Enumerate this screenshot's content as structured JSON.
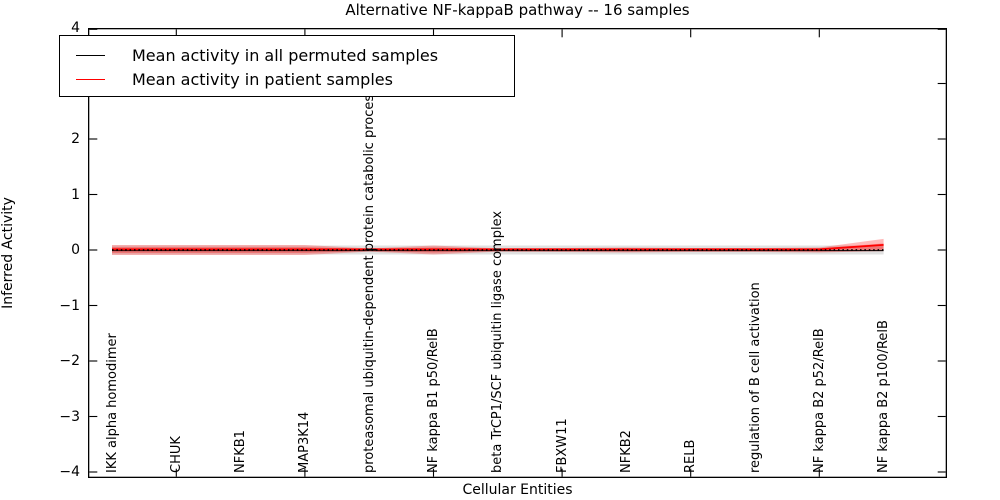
{
  "legend": {
    "items": [
      {
        "label": "Mean activity in all permuted samples",
        "color": "#000000"
      },
      {
        "label": "Mean activity in patient samples",
        "color": "#ff0000"
      }
    ]
  },
  "chart_data": {
    "type": "line",
    "title": "Alternative NF-kappaB pathway -- 16 samples",
    "xlabel": "Cellular Entities",
    "ylabel": "Inferred Activity",
    "ylim": [
      -4.1,
      4
    ],
    "yticks": [
      4,
      3,
      2,
      1,
      0,
      -1,
      -2,
      -3,
      -4
    ],
    "ytick_labels": [
      "4",
      "3",
      "2",
      "1",
      "0",
      "−1",
      "−2",
      "−3",
      "−4"
    ],
    "grid": false,
    "legend_position": "upper left",
    "x_tick_indices": [
      1,
      3,
      5,
      7,
      9,
      11
    ],
    "categories": [
      "IKK alpha homodimer",
      "CHUK",
      "NFKB1",
      "MAP3K14",
      "proteasomal ubiquitin-dependent protein catabolic process",
      "NF kappa B1 p50/RelB",
      "beta TrCP1/SCF ubiquitin ligase complex",
      "FBXW11",
      "NFKB2",
      "RELB",
      "regulation of B cell activation",
      "NF kappa B2 p52/RelB",
      "NF kappa B2 p100/RelB"
    ],
    "series": [
      {
        "name": "Mean activity in all permuted samples",
        "color": "#000000",
        "line_style": "solid-with-dot-overlay",
        "values": [
          0,
          0,
          0,
          0,
          0,
          0,
          0,
          0,
          0,
          0,
          0,
          0,
          0
        ],
        "band_upper": [
          0.08,
          0.08,
          0.08,
          0.08,
          0.08,
          0.08,
          0.08,
          0.08,
          0.08,
          0.08,
          0.08,
          0.08,
          0.08
        ],
        "band_lower": [
          -0.08,
          -0.08,
          -0.08,
          -0.08,
          -0.08,
          -0.08,
          -0.08,
          -0.08,
          -0.08,
          -0.08,
          -0.08,
          -0.08,
          -0.08
        ],
        "band_color": "#000000",
        "band_opacity": 0.12
      },
      {
        "name": "Mean activity in patient samples",
        "color": "#ff0000",
        "line_style": "solid",
        "values": [
          0,
          0,
          0,
          0,
          0,
          0,
          0,
          0,
          0,
          0,
          0,
          0,
          0.08
        ],
        "band_upper": [
          0.09,
          0.09,
          0.09,
          0.09,
          0.03,
          0.08,
          0.03,
          0.035,
          0.045,
          0.035,
          0.035,
          0.045,
          0.2
        ],
        "band_lower": [
          -0.09,
          -0.09,
          -0.09,
          -0.09,
          -0.03,
          -0.08,
          -0.03,
          -0.035,
          -0.045,
          -0.035,
          -0.035,
          -0.045,
          -0.02
        ],
        "band_color": "#ff0000",
        "band_opacity": 0.27
      }
    ]
  }
}
